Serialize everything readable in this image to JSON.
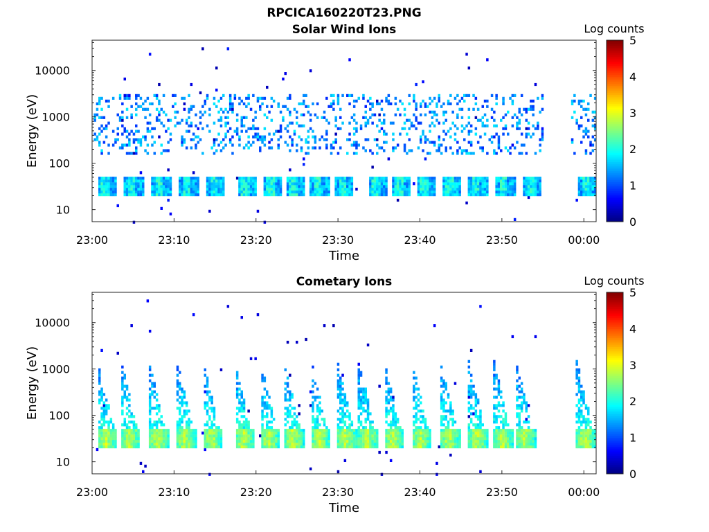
{
  "figure": {
    "title": "RPCICA160220T23.PNG"
  },
  "chart_data": [
    {
      "type": "heatmap",
      "title": "Solar Wind Ions",
      "xlabel": "Time",
      "ylabel": "Energy (eV)",
      "x_ticks": [
        "23:00",
        "23:10",
        "23:20",
        "23:30",
        "23:40",
        "23:50",
        "00:00"
      ],
      "x_tick_minutes": [
        0,
        10,
        20,
        30,
        40,
        50,
        60
      ],
      "xlim_minutes": [
        0,
        61.5
      ],
      "y_ticks": [
        "10",
        "100",
        "1000",
        "10000"
      ],
      "y_tick_values": [
        10,
        100,
        1000,
        10000
      ],
      "ylim": [
        5.5,
        45000
      ],
      "y_scale": "log",
      "colorbar": {
        "title": "Log counts",
        "ticks": [
          "0",
          "1",
          "2",
          "3",
          "4",
          "5"
        ],
        "range": [
          0,
          5
        ],
        "colormap": "jet"
      },
      "cycles_start_minutes": [
        0.5,
        3.8,
        7.2,
        10.5,
        13.8,
        17.6,
        20.8,
        23.5,
        26.5,
        29.5,
        33.6,
        36.4,
        39.5,
        42.6,
        45.8,
        49.2,
        52.5,
        59.2
      ],
      "low_band_eV": [
        18,
        45
      ],
      "low_band_level": 1.5,
      "high_band_eV": [
        150,
        3000
      ],
      "high_band_level": 1.2,
      "data_gap_minutes": [
        55.2,
        58.3
      ]
    },
    {
      "type": "heatmap",
      "title": "Cometary Ions",
      "xlabel": "Time",
      "ylabel": "Energy (eV)",
      "x_ticks": [
        "23:00",
        "23:10",
        "23:20",
        "23:30",
        "23:40",
        "23:50",
        "00:00"
      ],
      "x_tick_minutes": [
        0,
        10,
        20,
        30,
        40,
        50,
        60
      ],
      "xlim_minutes": [
        0,
        61.5
      ],
      "y_ticks": [
        "10",
        "100",
        "1000",
        "10000"
      ],
      "y_tick_values": [
        10,
        100,
        1000,
        10000
      ],
      "ylim": [
        5.5,
        45000
      ],
      "y_scale": "log",
      "colorbar": {
        "title": "Log counts",
        "ticks": [
          "0",
          "1",
          "2",
          "3",
          "4",
          "5"
        ],
        "range": [
          0,
          5
        ],
        "colormap": "jet"
      },
      "cycles_start_minutes": [
        0.6,
        3.4,
        6.8,
        10.2,
        13.4,
        17.3,
        20.4,
        23.3,
        26.6,
        29.8,
        32.4,
        35.5,
        38.9,
        42.4,
        45.8,
        48.9,
        51.6,
        59.0
      ],
      "low_band_eV": [
        18,
        45
      ],
      "low_band_level": 2.8,
      "plume_top_eV": 1500,
      "plume_level": 2.0,
      "data_gap_minutes": [
        55.2,
        58.3
      ]
    }
  ]
}
